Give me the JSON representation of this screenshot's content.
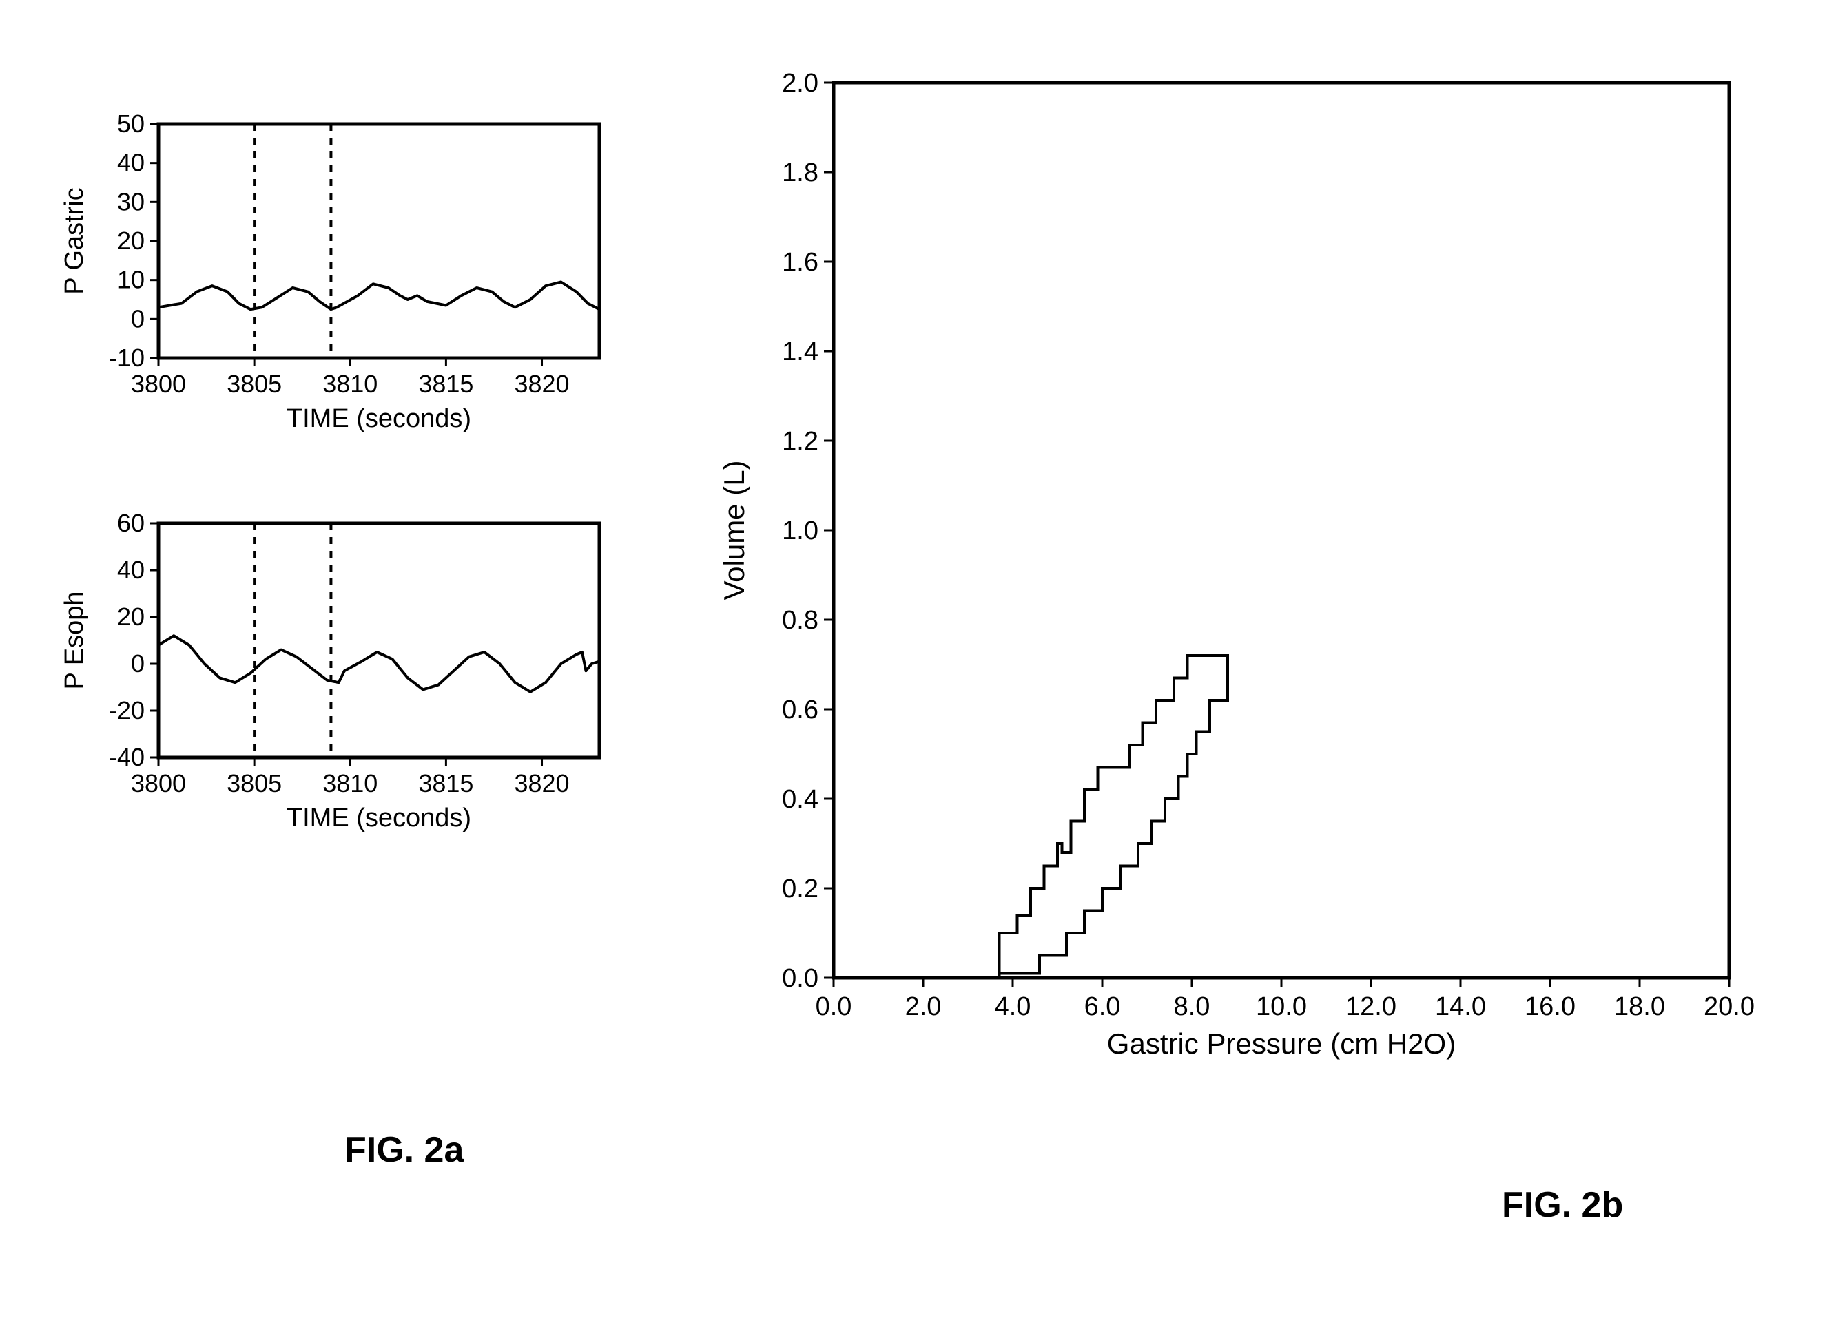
{
  "background_color": "#ffffff",
  "stroke_color": "#000000",
  "gastric_chart": {
    "type": "line",
    "ylabel": "P Gastric",
    "xlabel": "TIME (seconds)",
    "xlim": [
      3800,
      3823
    ],
    "ylim": [
      -10,
      50
    ],
    "xticks": [
      3800,
      3805,
      3810,
      3815,
      3820
    ],
    "yticks": [
      -10,
      0,
      10,
      20,
      30,
      40,
      50
    ],
    "xtick_labels": [
      "3800",
      "3805",
      "3810",
      "3815",
      "3820"
    ],
    "ytick_labels": [
      "-10",
      "0",
      "10",
      "20",
      "30",
      "40",
      "50"
    ],
    "dashed_x": [
      3805,
      3809
    ],
    "line_color": "#000000",
    "line_width": 4,
    "axis_width": 5,
    "tick_fontsize": 36,
    "label_fontsize": 38,
    "series": [
      [
        3800.0,
        3.0
      ],
      [
        3801.2,
        4.0
      ],
      [
        3802.0,
        7.0
      ],
      [
        3802.8,
        8.5
      ],
      [
        3803.6,
        7.0
      ],
      [
        3804.2,
        4.0
      ],
      [
        3804.8,
        2.5
      ],
      [
        3805.4,
        3.0
      ],
      [
        3806.2,
        5.5
      ],
      [
        3807.0,
        8.0
      ],
      [
        3807.8,
        7.0
      ],
      [
        3808.4,
        4.5
      ],
      [
        3809.0,
        2.5
      ],
      [
        3809.3,
        3.0
      ],
      [
        3810.4,
        6.0
      ],
      [
        3811.2,
        9.0
      ],
      [
        3812.0,
        8.0
      ],
      [
        3812.6,
        6.0
      ],
      [
        3813.0,
        5.0
      ],
      [
        3813.5,
        6.0
      ],
      [
        3814.0,
        4.5
      ],
      [
        3815.0,
        3.5
      ],
      [
        3815.8,
        6.0
      ],
      [
        3816.6,
        8.0
      ],
      [
        3817.4,
        7.0
      ],
      [
        3818.0,
        4.5
      ],
      [
        3818.6,
        3.0
      ],
      [
        3819.4,
        5.0
      ],
      [
        3820.2,
        8.5
      ],
      [
        3821.0,
        9.5
      ],
      [
        3821.8,
        7.0
      ],
      [
        3822.4,
        4.0
      ],
      [
        3823.0,
        2.5
      ]
    ]
  },
  "esoph_chart": {
    "type": "line",
    "ylabel": "P Esoph",
    "xlabel": "TIME (seconds)",
    "xlim": [
      3800,
      3823
    ],
    "ylim": [
      -40,
      60
    ],
    "xticks": [
      3800,
      3805,
      3810,
      3815,
      3820
    ],
    "yticks": [
      -40,
      -20,
      0,
      20,
      40,
      60
    ],
    "xtick_labels": [
      "3800",
      "3805",
      "3810",
      "3815",
      "3820"
    ],
    "ytick_labels": [
      "-40",
      "-20",
      "0",
      "20",
      "40",
      "60"
    ],
    "dashed_x": [
      3805,
      3809
    ],
    "line_color": "#000000",
    "line_width": 4,
    "axis_width": 5,
    "tick_fontsize": 36,
    "label_fontsize": 38,
    "series": [
      [
        3800.0,
        8.0
      ],
      [
        3800.8,
        12.0
      ],
      [
        3801.6,
        8.0
      ],
      [
        3802.4,
        0.0
      ],
      [
        3803.2,
        -6.0
      ],
      [
        3804.0,
        -8.0
      ],
      [
        3804.8,
        -4.0
      ],
      [
        3805.6,
        2.0
      ],
      [
        3806.4,
        6.0
      ],
      [
        3807.2,
        3.0
      ],
      [
        3808.0,
        -2.0
      ],
      [
        3808.8,
        -7.0
      ],
      [
        3809.4,
        -8.0
      ],
      [
        3809.7,
        -3.0
      ],
      [
        3810.6,
        1.0
      ],
      [
        3811.4,
        5.0
      ],
      [
        3812.2,
        2.0
      ],
      [
        3813.0,
        -6.0
      ],
      [
        3813.8,
        -11.0
      ],
      [
        3814.6,
        -9.0
      ],
      [
        3815.4,
        -3.0
      ],
      [
        3816.2,
        3.0
      ],
      [
        3817.0,
        5.0
      ],
      [
        3817.8,
        0.0
      ],
      [
        3818.6,
        -8.0
      ],
      [
        3819.4,
        -12.0
      ],
      [
        3820.2,
        -8.0
      ],
      [
        3821.0,
        0.0
      ],
      [
        3821.8,
        4.0
      ],
      [
        3822.1,
        5.0
      ],
      [
        3822.3,
        -3.0
      ],
      [
        3822.6,
        0.0
      ],
      [
        3823.0,
        1.0
      ]
    ]
  },
  "loop_chart": {
    "type": "line",
    "xlabel": "Gastric Pressure (cm H2O)",
    "ylabel": "Volume (L)",
    "xlim": [
      0,
      20
    ],
    "ylim": [
      0,
      2.0
    ],
    "xticks": [
      0,
      2,
      4,
      6,
      8,
      10,
      12,
      14,
      16,
      18,
      20
    ],
    "yticks": [
      0.0,
      0.2,
      0.4,
      0.6,
      0.8,
      1.0,
      1.2,
      1.4,
      1.6,
      1.8,
      2.0
    ],
    "xtick_labels": [
      "0.0",
      "2.0",
      "4.0",
      "6.0",
      "8.0",
      "10.0",
      "12.0",
      "14.0",
      "16.0",
      "18.0",
      "20.0"
    ],
    "ytick_labels": [
      "0.0",
      "0.2",
      "0.4",
      "0.6",
      "0.8",
      "1.0",
      "1.2",
      "1.4",
      "1.6",
      "1.8",
      "2.0"
    ],
    "line_color": "#000000",
    "line_width": 4,
    "axis_width": 5,
    "tick_fontsize": 38,
    "label_fontsize": 42,
    "series": [
      [
        3.7,
        0.0
      ],
      [
        3.7,
        0.1
      ],
      [
        4.1,
        0.1
      ],
      [
        4.1,
        0.14
      ],
      [
        4.4,
        0.14
      ],
      [
        4.4,
        0.2
      ],
      [
        4.7,
        0.2
      ],
      [
        4.7,
        0.25
      ],
      [
        5.0,
        0.25
      ],
      [
        5.0,
        0.3
      ],
      [
        5.1,
        0.3
      ],
      [
        5.1,
        0.28
      ],
      [
        5.3,
        0.28
      ],
      [
        5.3,
        0.35
      ],
      [
        5.6,
        0.35
      ],
      [
        5.6,
        0.42
      ],
      [
        5.9,
        0.42
      ],
      [
        5.9,
        0.47
      ],
      [
        6.2,
        0.47
      ],
      [
        6.2,
        0.47
      ],
      [
        6.6,
        0.47
      ],
      [
        6.6,
        0.52
      ],
      [
        6.9,
        0.52
      ],
      [
        6.9,
        0.57
      ],
      [
        7.2,
        0.57
      ],
      [
        7.2,
        0.62
      ],
      [
        7.6,
        0.62
      ],
      [
        7.6,
        0.67
      ],
      [
        7.9,
        0.67
      ],
      [
        7.9,
        0.72
      ],
      [
        8.3,
        0.72
      ],
      [
        8.8,
        0.72
      ],
      [
        8.8,
        0.62
      ],
      [
        8.4,
        0.62
      ],
      [
        8.4,
        0.55
      ],
      [
        8.1,
        0.55
      ],
      [
        8.1,
        0.5
      ],
      [
        7.9,
        0.5
      ],
      [
        7.9,
        0.45
      ],
      [
        7.7,
        0.45
      ],
      [
        7.7,
        0.4
      ],
      [
        7.4,
        0.4
      ],
      [
        7.4,
        0.35
      ],
      [
        7.1,
        0.35
      ],
      [
        7.1,
        0.3
      ],
      [
        6.8,
        0.3
      ],
      [
        6.8,
        0.25
      ],
      [
        6.4,
        0.25
      ],
      [
        6.4,
        0.2
      ],
      [
        6.0,
        0.2
      ],
      [
        6.0,
        0.15
      ],
      [
        5.6,
        0.15
      ],
      [
        5.6,
        0.1
      ],
      [
        5.2,
        0.1
      ],
      [
        5.2,
        0.05
      ],
      [
        4.6,
        0.05
      ],
      [
        4.6,
        0.01
      ],
      [
        3.7,
        0.01
      ],
      [
        3.7,
        0.0
      ]
    ]
  },
  "figure_labels": {
    "a": "FIG. 2a",
    "b": "FIG. 2b",
    "fontsize": 52,
    "fontweight": 700
  }
}
